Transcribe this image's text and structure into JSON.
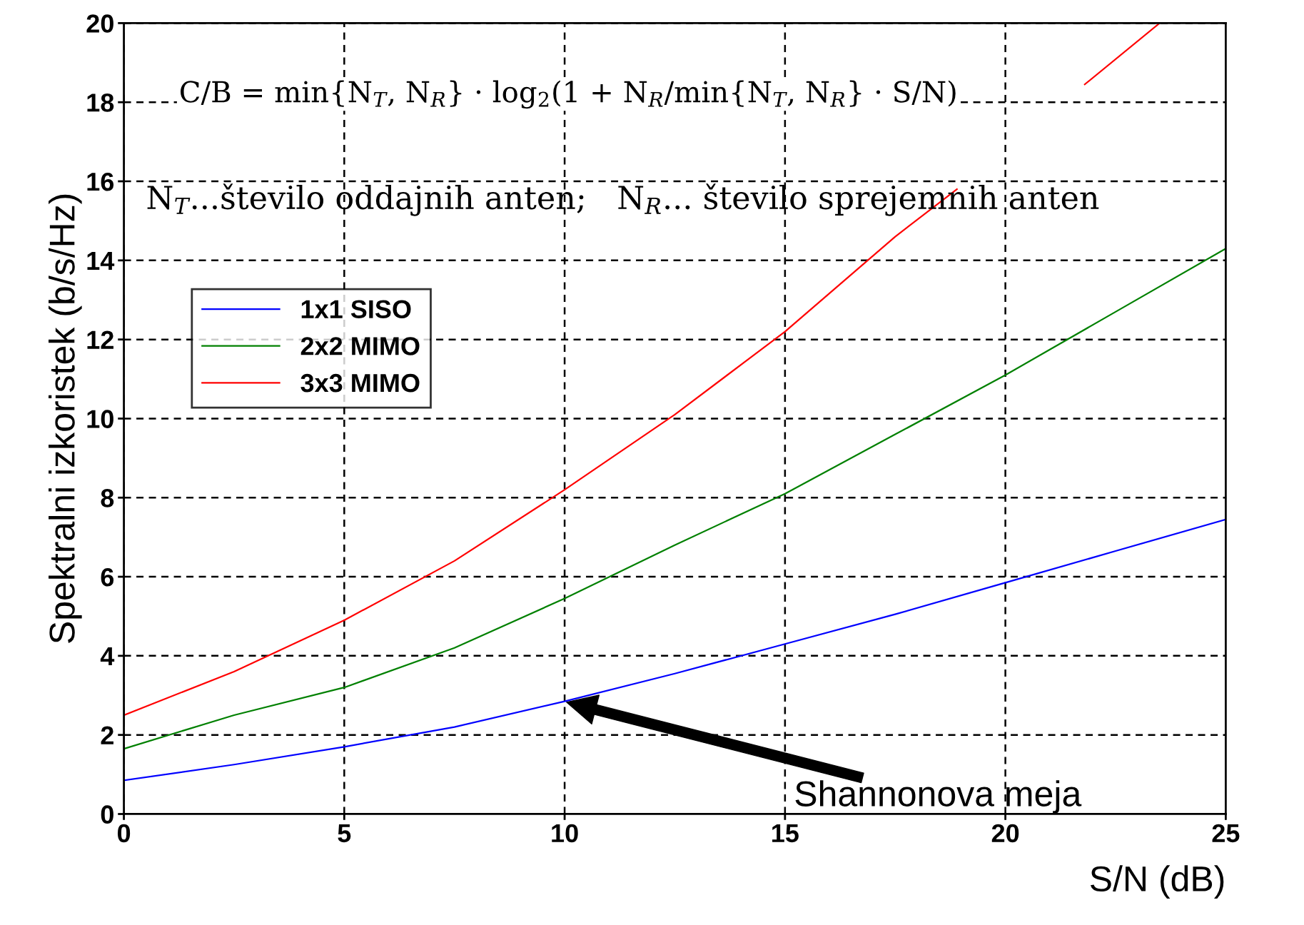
{
  "chart_data": {
    "type": "line",
    "xlabel": "S/N (dB)",
    "ylabel": "Spektralni izkoristek (b/s/Hz)",
    "xlim": [
      0,
      25
    ],
    "ylim": [
      0,
      20
    ],
    "xticks": [
      0,
      5,
      10,
      15,
      20,
      25
    ],
    "yticks": [
      0,
      2,
      4,
      6,
      8,
      10,
      12,
      14,
      16,
      18,
      20
    ],
    "grid": true,
    "legend": "top left",
    "line_style": "solid",
    "marker": "none",
    "series": [
      {
        "name": "1x1 SISO",
        "color": "#0000ff",
        "x": [
          0,
          2.5,
          5,
          7.5,
          10,
          12.5,
          15,
          17.5,
          20,
          22.5,
          25
        ],
        "values": [
          0.85,
          1.25,
          1.7,
          2.2,
          2.85,
          3.55,
          4.3,
          5.05,
          5.85,
          6.65,
          7.45
        ]
      },
      {
        "name": "2x2 MIMO",
        "color": "#008000",
        "x": [
          0,
          2.5,
          5,
          7.5,
          10,
          12.5,
          15,
          17.5,
          20,
          22.5,
          25
        ],
        "values": [
          1.65,
          2.5,
          3.2,
          4.2,
          5.45,
          6.8,
          8.1,
          9.6,
          11.1,
          12.7,
          14.3
        ]
      },
      {
        "name": "3x3 MIMO",
        "color": "#ff0000",
        "x": [
          0,
          2.5,
          5,
          7.5,
          10,
          12.5,
          15,
          17.5,
          18.9,
          20,
          21.8,
          23.5
        ],
        "values": [
          2.5,
          3.6,
          4.9,
          6.4,
          8.2,
          10.1,
          12.2,
          14.6,
          15.8,
          null,
          18.45,
          20
        ]
      }
    ],
    "annotations": [
      "C/B = min{N$_{T}$, N$_{R}$} · log$_{2}$(1 + N$_{R}$/min{N$_{T}$, N$_{R}$} · S/N)",
      "N$_{T}$...število oddajnih anten;   N$_{R}$... število sprejemnih anten",
      "Shannonova meja"
    ]
  }
}
